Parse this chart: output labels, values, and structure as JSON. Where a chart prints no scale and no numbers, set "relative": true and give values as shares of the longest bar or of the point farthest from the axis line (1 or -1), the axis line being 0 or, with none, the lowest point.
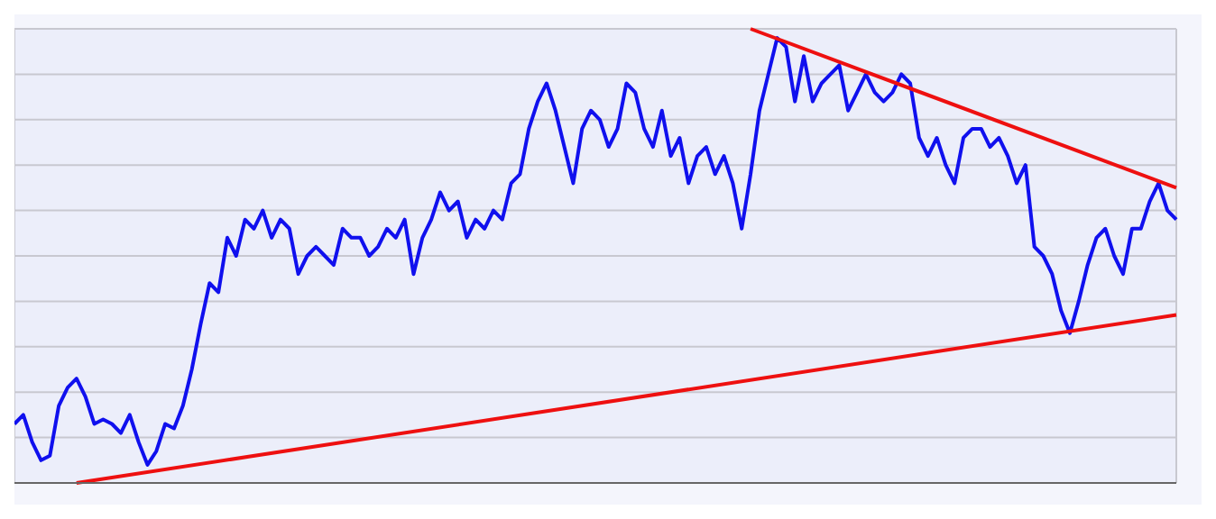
{
  "chart_data": {
    "type": "line",
    "relative": true,
    "grid": true,
    "legend": false,
    "marker": "none",
    "line_style": "solid",
    "categories": [
      null,
      null,
      null,
      null,
      null,
      null,
      null,
      null,
      null,
      null,
      null,
      null,
      null,
      null,
      null,
      null,
      null,
      null,
      null,
      null,
      null,
      null,
      null,
      null,
      null,
      null,
      null,
      null,
      null,
      null,
      null,
      null,
      null,
      null,
      null,
      null,
      null,
      null,
      null,
      null,
      null,
      null,
      null,
      null,
      null,
      null,
      null,
      null,
      null,
      null,
      null,
      null,
      null,
      null,
      null,
      null,
      null,
      null,
      null,
      null,
      null,
      null,
      null,
      null,
      null,
      null,
      null,
      null,
      null,
      null,
      null,
      null,
      null,
      null,
      null,
      null,
      null,
      null,
      null,
      null,
      null,
      null,
      null,
      null,
      null,
      null,
      null,
      null,
      null,
      null,
      null,
      null,
      null,
      null,
      null,
      null,
      null,
      null,
      null,
      null,
      null,
      null,
      null,
      null,
      null,
      null,
      null,
      null,
      null,
      null,
      null,
      null,
      null,
      null,
      null,
      null,
      null,
      null,
      null,
      null,
      null,
      null,
      null,
      null,
      null,
      null,
      null,
      null,
      null,
      null,
      null,
      null
    ],
    "series": [
      {
        "color": "#1010ee",
        "values": [
          0.13,
          0.15,
          0.09,
          0.05,
          0.06,
          0.17,
          0.21,
          0.23,
          0.19,
          0.13,
          0.14,
          0.13,
          0.11,
          0.15,
          0.09,
          0.04,
          0.07,
          0.13,
          0.12,
          0.17,
          0.25,
          0.35,
          0.44,
          0.42,
          0.54,
          0.5,
          0.58,
          0.56,
          0.6,
          0.54,
          0.58,
          0.56,
          0.46,
          0.5,
          0.52,
          0.5,
          0.48,
          0.56,
          0.54,
          0.54,
          0.5,
          0.52,
          0.56,
          0.54,
          0.58,
          0.46,
          0.54,
          0.58,
          0.64,
          0.6,
          0.62,
          0.54,
          0.58,
          0.56,
          0.6,
          0.58,
          0.66,
          0.68,
          0.78,
          0.84,
          0.88,
          0.82,
          0.74,
          0.66,
          0.78,
          0.82,
          0.8,
          0.74,
          0.78,
          0.88,
          0.86,
          0.78,
          0.74,
          0.82,
          0.72,
          0.76,
          0.66,
          0.72,
          0.74,
          0.68,
          0.72,
          0.66,
          0.56,
          0.68,
          0.82,
          0.9,
          0.98,
          0.96,
          0.84,
          0.94,
          0.84,
          0.88,
          0.9,
          0.92,
          0.82,
          0.86,
          0.9,
          0.86,
          0.84,
          0.86,
          0.9,
          0.88,
          0.76,
          0.72,
          0.76,
          0.7,
          0.66,
          0.76,
          0.78,
          0.78,
          0.74,
          0.76,
          0.72,
          0.66,
          0.7,
          0.52,
          0.5,
          0.46,
          0.38,
          0.33,
          0.4,
          0.48,
          0.54,
          0.56,
          0.5,
          0.46,
          0.56,
          0.56,
          0.62,
          0.66,
          0.6,
          0.58
        ]
      },
      {
        "color": "#ee1010",
        "values": [
          null,
          null,
          null,
          null,
          null,
          null,
          null,
          0,
          null,
          null,
          null,
          null,
          null,
          null,
          null,
          null,
          null,
          null,
          null,
          null,
          null,
          null,
          null,
          null,
          null,
          null,
          null,
          null,
          null,
          null,
          null,
          null,
          null,
          null,
          null,
          null,
          null,
          null,
          null,
          null,
          null,
          null,
          null,
          null,
          null,
          null,
          null,
          null,
          null,
          null,
          null,
          null,
          null,
          null,
          null,
          null,
          null,
          null,
          null,
          null,
          null,
          null,
          null,
          null,
          null,
          null,
          null,
          null,
          null,
          null,
          null,
          null,
          null,
          null,
          null,
          null,
          null,
          null,
          null,
          null,
          null,
          null,
          null,
          null,
          null,
          null,
          null,
          null,
          null,
          null,
          null,
          null,
          null,
          null,
          null,
          null,
          null,
          null,
          null,
          null,
          null,
          null,
          null,
          null,
          null,
          null,
          null,
          null,
          null,
          null,
          null,
          null,
          null,
          null,
          null,
          null,
          null,
          null,
          null,
          null,
          null,
          null,
          null,
          null,
          null,
          null,
          null,
          null,
          null,
          null,
          null,
          0.37
        ]
      },
      {
        "color": "#ee1010",
        "values": [
          null,
          null,
          null,
          null,
          null,
          null,
          null,
          null,
          null,
          null,
          null,
          null,
          null,
          null,
          null,
          null,
          null,
          null,
          null,
          null,
          null,
          null,
          null,
          null,
          null,
          null,
          null,
          null,
          null,
          null,
          null,
          null,
          null,
          null,
          null,
          null,
          null,
          null,
          null,
          null,
          null,
          null,
          null,
          null,
          null,
          null,
          null,
          null,
          null,
          null,
          null,
          null,
          null,
          null,
          null,
          null,
          null,
          null,
          null,
          null,
          null,
          null,
          null,
          null,
          null,
          null,
          null,
          null,
          null,
          null,
          null,
          null,
          null,
          null,
          null,
          null,
          null,
          null,
          null,
          null,
          null,
          null,
          null,
          1,
          null,
          null,
          null,
          null,
          null,
          null,
          null,
          null,
          null,
          null,
          null,
          null,
          null,
          null,
          null,
          null,
          null,
          null,
          null,
          null,
          null,
          null,
          null,
          null,
          null,
          null,
          null,
          null,
          null,
          null,
          null,
          null,
          null,
          null,
          null,
          null,
          null,
          null,
          null,
          null,
          null,
          null,
          null,
          null,
          null,
          null,
          null,
          0.65
        ]
      }
    ]
  }
}
